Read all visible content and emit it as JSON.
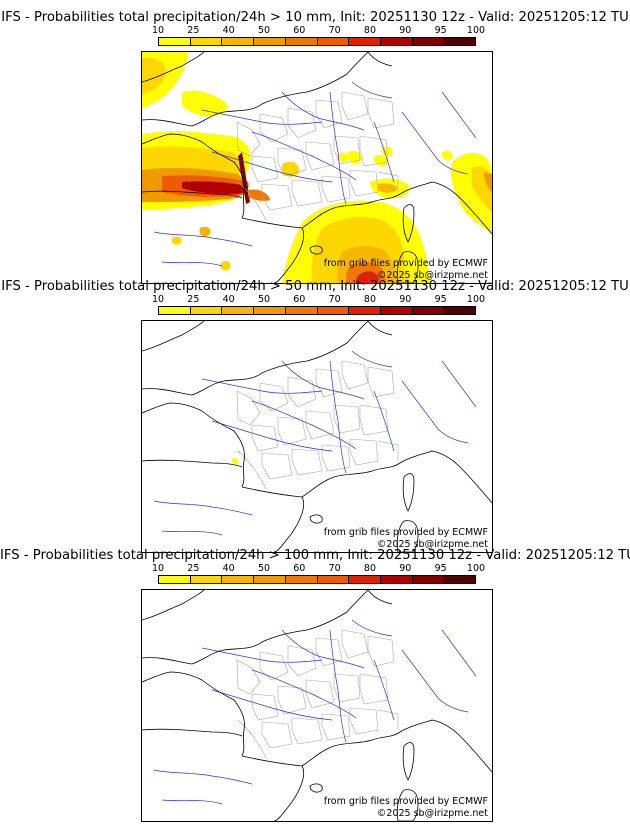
{
  "colorbar": {
    "labels": [
      "10",
      "25",
      "40",
      "50",
      "60",
      "70",
      "80",
      "90",
      "95",
      "100"
    ],
    "colors": [
      "#ffff00",
      "#ffd700",
      "#f7b500",
      "#f09a00",
      "#f07800",
      "#f05a00",
      "#e02000",
      "#b00000",
      "#800000",
      "#500000"
    ]
  },
  "panels": [
    {
      "title": "IFS - Probabilities total precipitation/24h > 10 mm, Init: 20251130 12z - Valid: 20251205:12 TU",
      "precip": "heavy"
    },
    {
      "title": "IFS - Probabilities total precipitation/24h > 50 mm, Init: 20251130 12z - Valid: 20251205:12 TU",
      "precip": "trace"
    },
    {
      "title": "IFS - Probabilities total precipitation/24h > 100 mm, Init: 20251130 12z - Valid: 20251205:12 TU",
      "precip": "none"
    }
  ],
  "credits": {
    "source": "from grib files provided by ECMWF",
    "copyright": "©2025 sb@irizpme.net"
  },
  "map_colors": {
    "coast": "#000000",
    "rivers": "#3333cc",
    "regions": "#aaaaaa"
  }
}
